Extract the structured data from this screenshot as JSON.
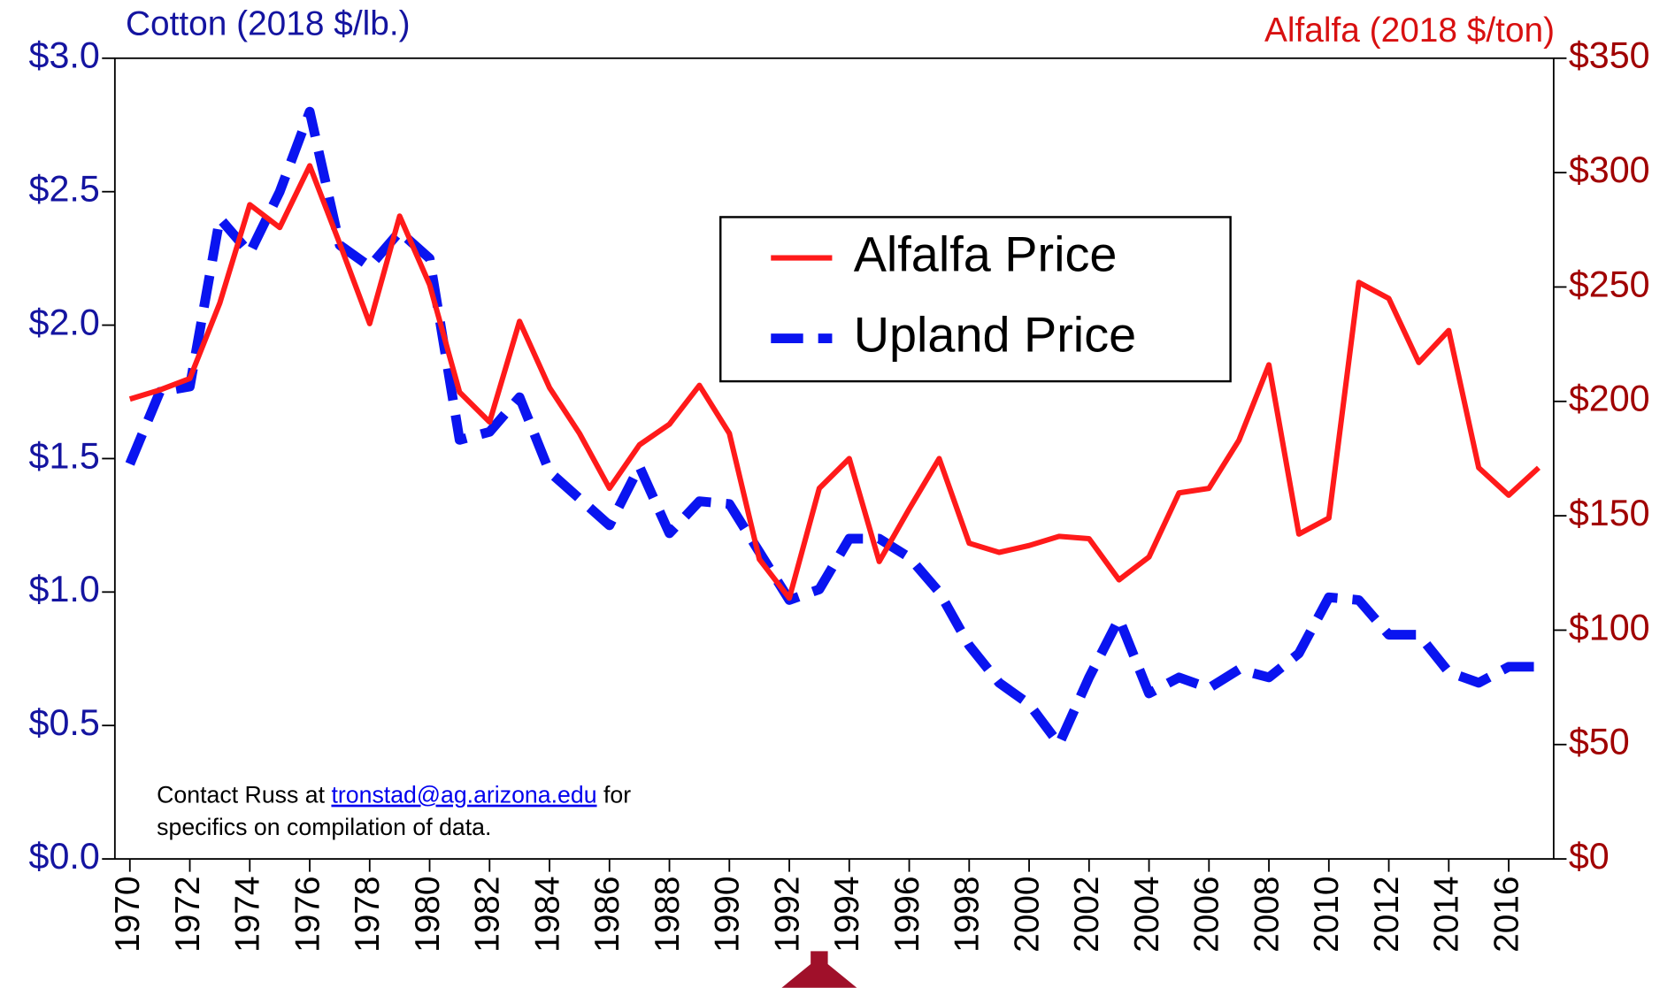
{
  "chart_data": {
    "type": "line",
    "y_title": "Cotton (2018 $/lb.)",
    "y2_title": "Alfalfa (2018 $/ton)",
    "x": [
      1970,
      1971,
      1972,
      1973,
      1974,
      1975,
      1976,
      1977,
      1978,
      1979,
      1980,
      1981,
      1982,
      1983,
      1984,
      1985,
      1986,
      1987,
      1988,
      1989,
      1990,
      1991,
      1992,
      1993,
      1994,
      1995,
      1996,
      1997,
      1998,
      1999,
      2000,
      2001,
      2002,
      2003,
      2004,
      2005,
      2006,
      2007,
      2008,
      2009,
      2010,
      2011,
      2012,
      2013,
      2014,
      2015,
      2016,
      2017
    ],
    "series": [
      {
        "name": "Alfalfa Price",
        "color": "#ff1a1a",
        "axis": "y2",
        "values": [
          201,
          205,
          210,
          243,
          286,
          276,
          303,
          269,
          234,
          281,
          251,
          204,
          191,
          235,
          206,
          186,
          162,
          181,
          190,
          207,
          186,
          131,
          114,
          162,
          175,
          130,
          153,
          175,
          138,
          134,
          137,
          141,
          140,
          122,
          132,
          160,
          162,
          183,
          216,
          142,
          149,
          252,
          245,
          217,
          231,
          171,
          159,
          171
        ]
      },
      {
        "name": "Upland Price",
        "color": "#0a14f0",
        "axis": "y",
        "values": [
          1.48,
          1.75,
          1.77,
          2.4,
          2.27,
          2.5,
          2.8,
          2.3,
          2.22,
          2.35,
          2.25,
          1.57,
          1.6,
          1.73,
          1.45,
          1.35,
          1.25,
          1.47,
          1.22,
          1.34,
          1.33,
          1.15,
          0.97,
          1.01,
          1.2,
          1.2,
          1.13,
          1.0,
          0.8,
          0.66,
          0.58,
          0.43,
          0.68,
          0.9,
          0.62,
          0.68,
          0.64,
          0.71,
          0.68,
          0.77,
          0.98,
          0.97,
          0.84,
          0.84,
          0.7,
          0.66,
          0.72,
          0.72
        ]
      }
    ],
    "xlim": [
      1969.5,
      2017.5
    ],
    "xticks": [
      1970,
      1972,
      1974,
      1976,
      1978,
      1980,
      1982,
      1984,
      1986,
      1988,
      1990,
      1992,
      1994,
      1996,
      1998,
      2000,
      2002,
      2004,
      2006,
      2008,
      2010,
      2012,
      2014,
      2016
    ],
    "ylim": [
      0,
      3
    ],
    "yticks": [
      {
        "value": 0,
        "label": "$0.0"
      },
      {
        "value": 0.5,
        "label": "$0.5"
      },
      {
        "value": 1,
        "label": "$1.0"
      },
      {
        "value": 1.5,
        "label": "$1.5"
      },
      {
        "value": 2,
        "label": "$2.0"
      },
      {
        "value": 2.5,
        "label": "$2.5"
      },
      {
        "value": 3,
        "label": "$3.0"
      }
    ],
    "y2lim": [
      0,
      350
    ],
    "y2ticks": [
      {
        "value": 0,
        "label": "$0"
      },
      {
        "value": 50,
        "label": "$50"
      },
      {
        "value": 100,
        "label": "$100"
      },
      {
        "value": 150,
        "label": "$150"
      },
      {
        "value": 200,
        "label": "$200"
      },
      {
        "value": 250,
        "label": "$250"
      },
      {
        "value": 300,
        "label": "$300"
      },
      {
        "value": 350,
        "label": "$350"
      }
    ],
    "note": {
      "before": "Contact Russ at",
      "link": "tronstad@ag.arizona.edu",
      "after": "for",
      "line2": "specifics on compilation of data."
    }
  }
}
